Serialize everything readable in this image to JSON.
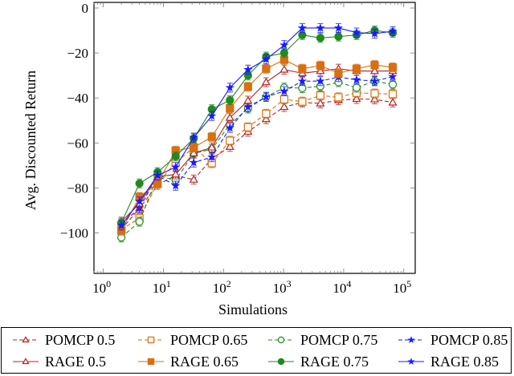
{
  "chart_data": {
    "type": "line",
    "title": "",
    "xlabel": "Simulations",
    "ylabel": "Avg. Discounted Return",
    "xscale": "log",
    "xlim": [
      0.7,
      155000
    ],
    "ylim": [
      -118,
      2.5
    ],
    "xticks": [
      1,
      10,
      100,
      1000,
      10000,
      100000
    ],
    "xtick_labels": [
      [
        "10",
        "0"
      ],
      [
        "10",
        "1"
      ],
      [
        "10",
        "2"
      ],
      [
        "10",
        "3"
      ],
      [
        "10",
        "4"
      ],
      [
        "10",
        "5"
      ]
    ],
    "yticks": [
      0,
      -20,
      -40,
      -60,
      -80,
      -100
    ],
    "ytick_labels": [
      "0",
      "−20",
      "−40",
      "−60",
      "−80",
      "−100"
    ],
    "grid": false,
    "legend_position": "bottom-outside",
    "error_bar_halfwidth": 2,
    "x": [
      2,
      4,
      8,
      16,
      32,
      64,
      128,
      256,
      512,
      1024,
      2048,
      4096,
      8192,
      16384,
      32768,
      65536
    ],
    "series": [
      {
        "name": "POMCP 0.5",
        "color": "#b22222",
        "dash": true,
        "marker": "triangle",
        "filled": false,
        "values": [
          -98.5,
          -89,
          -78.6,
          -74.5,
          -76.3,
          -67,
          -61.7,
          -55,
          -49.4,
          -44,
          -42,
          -42.4,
          -41,
          -40.4,
          -40.6,
          -42
        ]
      },
      {
        "name": "POMCP 0.65",
        "color": "#d96f10",
        "dash": true,
        "marker": "square",
        "filled": false,
        "values": [
          -98.5,
          -93.5,
          -78,
          -68.7,
          -62,
          -69,
          -59,
          -53,
          -47,
          -40.6,
          -41.6,
          -38.9,
          -39.7,
          -37.7,
          -38,
          -38.3
        ]
      },
      {
        "name": "POMCP 0.75",
        "color": "#1f8a1f",
        "dash": true,
        "marker": "circle",
        "filled": false,
        "values": [
          -102,
          -95,
          -74.5,
          -76.6,
          -64.6,
          -62.8,
          -51.7,
          -44.7,
          -39.5,
          -35.4,
          -35.6,
          -34.8,
          -33,
          -35.4,
          -32.5,
          -34
        ]
      },
      {
        "name": "POMCP 0.85",
        "color": "#1a1aff",
        "dash": true,
        "marker": "star",
        "filled": true,
        "values": [
          -96,
          -89,
          -74.5,
          -79,
          -68.7,
          -66.3,
          -53.3,
          -44,
          -39.5,
          -37,
          -32.5,
          -32.5,
          -30.7,
          -31.9,
          -32.5,
          -30.5
        ]
      },
      {
        "name": "RAGE 0.5",
        "color": "#b22222",
        "dash": false,
        "marker": "triangle",
        "filled": false,
        "values": [
          -95,
          -87,
          -75,
          -74,
          -64.6,
          -62,
          -48.8,
          -41.2,
          -33,
          -27.4,
          -29,
          -28,
          -27,
          -28,
          -28,
          -28
        ]
      },
      {
        "name": "RAGE 0.65",
        "color": "#d96f10",
        "dash": false,
        "marker": "square",
        "filled": true,
        "values": [
          -99,
          -84,
          -78,
          -63.4,
          -62,
          -57.3,
          -44.5,
          -35,
          -27,
          -23,
          -27,
          -25.6,
          -29,
          -27,
          -25.3,
          -26.4
        ]
      },
      {
        "name": "RAGE 0.75",
        "color": "#1f8a1f",
        "dash": false,
        "marker": "circle",
        "filled": true,
        "values": [
          -95.5,
          -78,
          -73,
          -66,
          -58,
          -45,
          -41,
          -30,
          -21.6,
          -20,
          -12,
          -13.3,
          -12.7,
          -12,
          -10,
          -11
        ]
      },
      {
        "name": "RAGE 0.85",
        "color": "#1a1aff",
        "dash": false,
        "marker": "star",
        "filled": true,
        "values": [
          -96.7,
          -86,
          -74.5,
          -70.7,
          -57.6,
          -48,
          -35.4,
          -27.4,
          -22.8,
          -16.5,
          -8.9,
          -8.9,
          -8.9,
          -10.9,
          -11.4,
          -10.3
        ]
      }
    ]
  }
}
